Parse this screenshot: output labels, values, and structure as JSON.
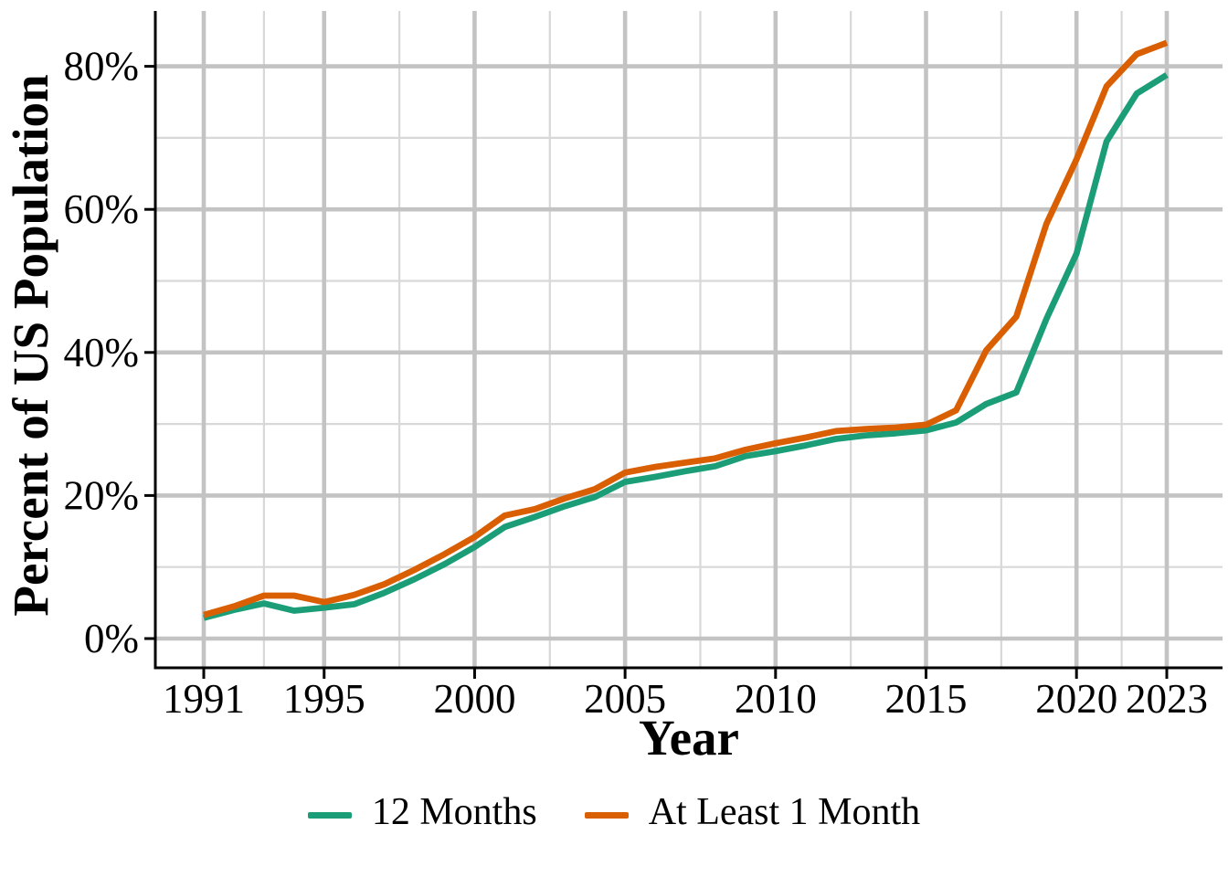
{
  "chart_data": {
    "type": "line",
    "title": "",
    "xlabel": "Year",
    "ylabel": "Percent of US Population",
    "x": [
      1991,
      1992,
      1993,
      1994,
      1995,
      1996,
      1997,
      1998,
      1999,
      2000,
      2001,
      2002,
      2003,
      2004,
      2005,
      2006,
      2007,
      2008,
      2009,
      2010,
      2011,
      2012,
      2013,
      2014,
      2015,
      2016,
      2017,
      2018,
      2019,
      2020,
      2021,
      2022,
      2023
    ],
    "series": [
      {
        "name": "12 Months",
        "color": "#1B9E77",
        "values": [
          2.9,
          4.0,
          4.9,
          3.9,
          4.3,
          4.8,
          6.4,
          8.3,
          10.4,
          12.8,
          15.6,
          17.0,
          18.5,
          19.8,
          21.9,
          22.6,
          23.4,
          24.1,
          25.5,
          26.2,
          27.0,
          27.9,
          28.4,
          28.7,
          29.1,
          30.2,
          32.8,
          34.4,
          44.7,
          53.8,
          69.5,
          76.2,
          78.8
        ]
      },
      {
        "name": "At Least 1 Month",
        "color": "#D95F02",
        "values": [
          3.3,
          4.5,
          6.0,
          6.0,
          5.1,
          6.1,
          7.6,
          9.6,
          11.8,
          14.2,
          17.2,
          18.1,
          19.6,
          20.9,
          23.2,
          24.0,
          24.6,
          25.2,
          26.4,
          27.3,
          28.1,
          29.0,
          29.3,
          29.5,
          29.9,
          31.9,
          40.3,
          45.0,
          58.0,
          67.0,
          77.2,
          81.7,
          83.3
        ]
      }
    ],
    "x_axis": {
      "major_ticks": [
        1991,
        1995,
        2000,
        2005,
        2010,
        2015,
        2020,
        2023
      ],
      "tick_labels": [
        "1991",
        "1995",
        "2000",
        "2005",
        "2010",
        "2015",
        "2020",
        "2023"
      ],
      "minor_breaks": [
        1993,
        1997.5,
        2002.5,
        2007.5,
        2012.5,
        2017.5,
        2021.5
      ],
      "range": [
        1991,
        2023
      ]
    },
    "y_axis": {
      "major_ticks": [
        0,
        20,
        40,
        60,
        80
      ],
      "tick_labels": [
        "0%",
        "20%",
        "40%",
        "60%",
        "80%"
      ],
      "minor_breaks": [
        10,
        30,
        50,
        70
      ],
      "range": [
        0,
        87.7
      ],
      "unit": "%"
    },
    "grid": {
      "major_color": "#C3C3C3",
      "minor_color": "#D8D8D8"
    },
    "axis_color": "#000000",
    "legend": {
      "position": "bottom",
      "items": [
        "12 Months",
        "At Least 1 Month"
      ]
    }
  }
}
